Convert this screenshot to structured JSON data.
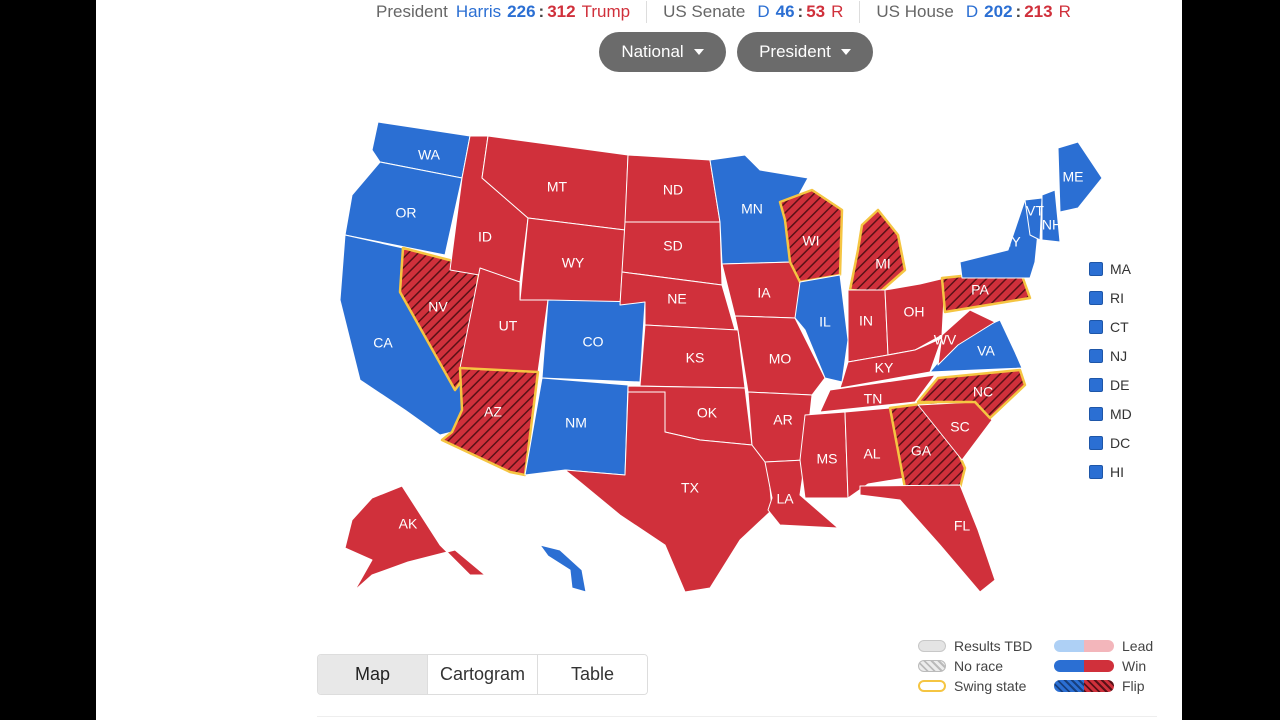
{
  "scoreboard": {
    "president": {
      "label": "President",
      "dem_name": "Harris",
      "dem_value": "226",
      "rep_value": "312",
      "rep_name": "Trump"
    },
    "senate": {
      "label": "US Senate",
      "dem_prefix": "D",
      "dem_value": "46",
      "rep_value": "53",
      "rep_suffix": "R"
    },
    "house": {
      "label": "US House",
      "dem_prefix": "D",
      "dem_value": "202",
      "rep_value": "213",
      "rep_suffix": "R"
    }
  },
  "filters": {
    "region": {
      "selected": "National"
    },
    "race": {
      "selected": "President"
    }
  },
  "colors": {
    "dem": "#2b6fd3",
    "rep": "#d0303b",
    "swing_outline": "#f5c542",
    "state_border": "#ffffff"
  },
  "map_states": [
    {
      "abbr": "WA",
      "winner": "D",
      "swing": false
    },
    {
      "abbr": "OR",
      "winner": "D",
      "swing": false
    },
    {
      "abbr": "CA",
      "winner": "D",
      "swing": false
    },
    {
      "abbr": "NV",
      "winner": "R",
      "swing": true
    },
    {
      "abbr": "ID",
      "winner": "R",
      "swing": false
    },
    {
      "abbr": "MT",
      "winner": "R",
      "swing": false
    },
    {
      "abbr": "WY",
      "winner": "R",
      "swing": false
    },
    {
      "abbr": "UT",
      "winner": "R",
      "swing": false
    },
    {
      "abbr": "AZ",
      "winner": "R",
      "swing": true
    },
    {
      "abbr": "CO",
      "winner": "D",
      "swing": false
    },
    {
      "abbr": "NM",
      "winner": "D",
      "swing": false
    },
    {
      "abbr": "ND",
      "winner": "R",
      "swing": false
    },
    {
      "abbr": "SD",
      "winner": "R",
      "swing": false
    },
    {
      "abbr": "NE",
      "winner": "R",
      "swing": false
    },
    {
      "abbr": "KS",
      "winner": "R",
      "swing": false
    },
    {
      "abbr": "OK",
      "winner": "R",
      "swing": false
    },
    {
      "abbr": "TX",
      "winner": "R",
      "swing": false
    },
    {
      "abbr": "MN",
      "winner": "D",
      "swing": false
    },
    {
      "abbr": "IA",
      "winner": "R",
      "swing": false
    },
    {
      "abbr": "MO",
      "winner": "R",
      "swing": false
    },
    {
      "abbr": "AR",
      "winner": "R",
      "swing": false
    },
    {
      "abbr": "LA",
      "winner": "R",
      "swing": false
    },
    {
      "abbr": "WI",
      "winner": "R",
      "swing": true
    },
    {
      "abbr": "IL",
      "winner": "D",
      "swing": false
    },
    {
      "abbr": "MI",
      "winner": "R",
      "swing": true
    },
    {
      "abbr": "IN",
      "winner": "R",
      "swing": false
    },
    {
      "abbr": "OH",
      "winner": "R",
      "swing": false
    },
    {
      "abbr": "KY",
      "winner": "R",
      "swing": false
    },
    {
      "abbr": "TN",
      "winner": "R",
      "swing": false
    },
    {
      "abbr": "MS",
      "winner": "R",
      "swing": false
    },
    {
      "abbr": "AL",
      "winner": "R",
      "swing": false
    },
    {
      "abbr": "GA",
      "winner": "R",
      "swing": true
    },
    {
      "abbr": "FL",
      "winner": "R",
      "swing": false
    },
    {
      "abbr": "SC",
      "winner": "R",
      "swing": false
    },
    {
      "abbr": "NC",
      "winner": "R",
      "swing": true
    },
    {
      "abbr": "VA",
      "winner": "D",
      "swing": false
    },
    {
      "abbr": "WV",
      "winner": "R",
      "swing": false
    },
    {
      "abbr": "PA",
      "winner": "R",
      "swing": true
    },
    {
      "abbr": "NY",
      "winner": "D",
      "swing": false
    },
    {
      "abbr": "VT",
      "winner": "D",
      "swing": false
    },
    {
      "abbr": "NH",
      "winner": "D",
      "swing": false
    },
    {
      "abbr": "ME",
      "winner": "D",
      "swing": false
    },
    {
      "abbr": "AK",
      "winner": "R",
      "swing": false
    },
    {
      "abbr": "HI",
      "winner": "D",
      "swing": false
    }
  ],
  "small_states": [
    {
      "abbr": "MA",
      "winner": "D"
    },
    {
      "abbr": "RI",
      "winner": "D"
    },
    {
      "abbr": "CT",
      "winner": "D"
    },
    {
      "abbr": "NJ",
      "winner": "D"
    },
    {
      "abbr": "DE",
      "winner": "D"
    },
    {
      "abbr": "MD",
      "winner": "D"
    },
    {
      "abbr": "DC",
      "winner": "D"
    },
    {
      "abbr": "HI",
      "winner": "D"
    }
  ],
  "view_tabs": [
    {
      "label": "Map",
      "active": true
    },
    {
      "label": "Cartogram",
      "active": false
    },
    {
      "label": "Table",
      "active": false
    }
  ],
  "legend": {
    "results_tbd": "Results TBD",
    "no_race": "No race",
    "swing_state": "Swing state",
    "lead": "Lead",
    "win": "Win",
    "flip": "Flip"
  }
}
